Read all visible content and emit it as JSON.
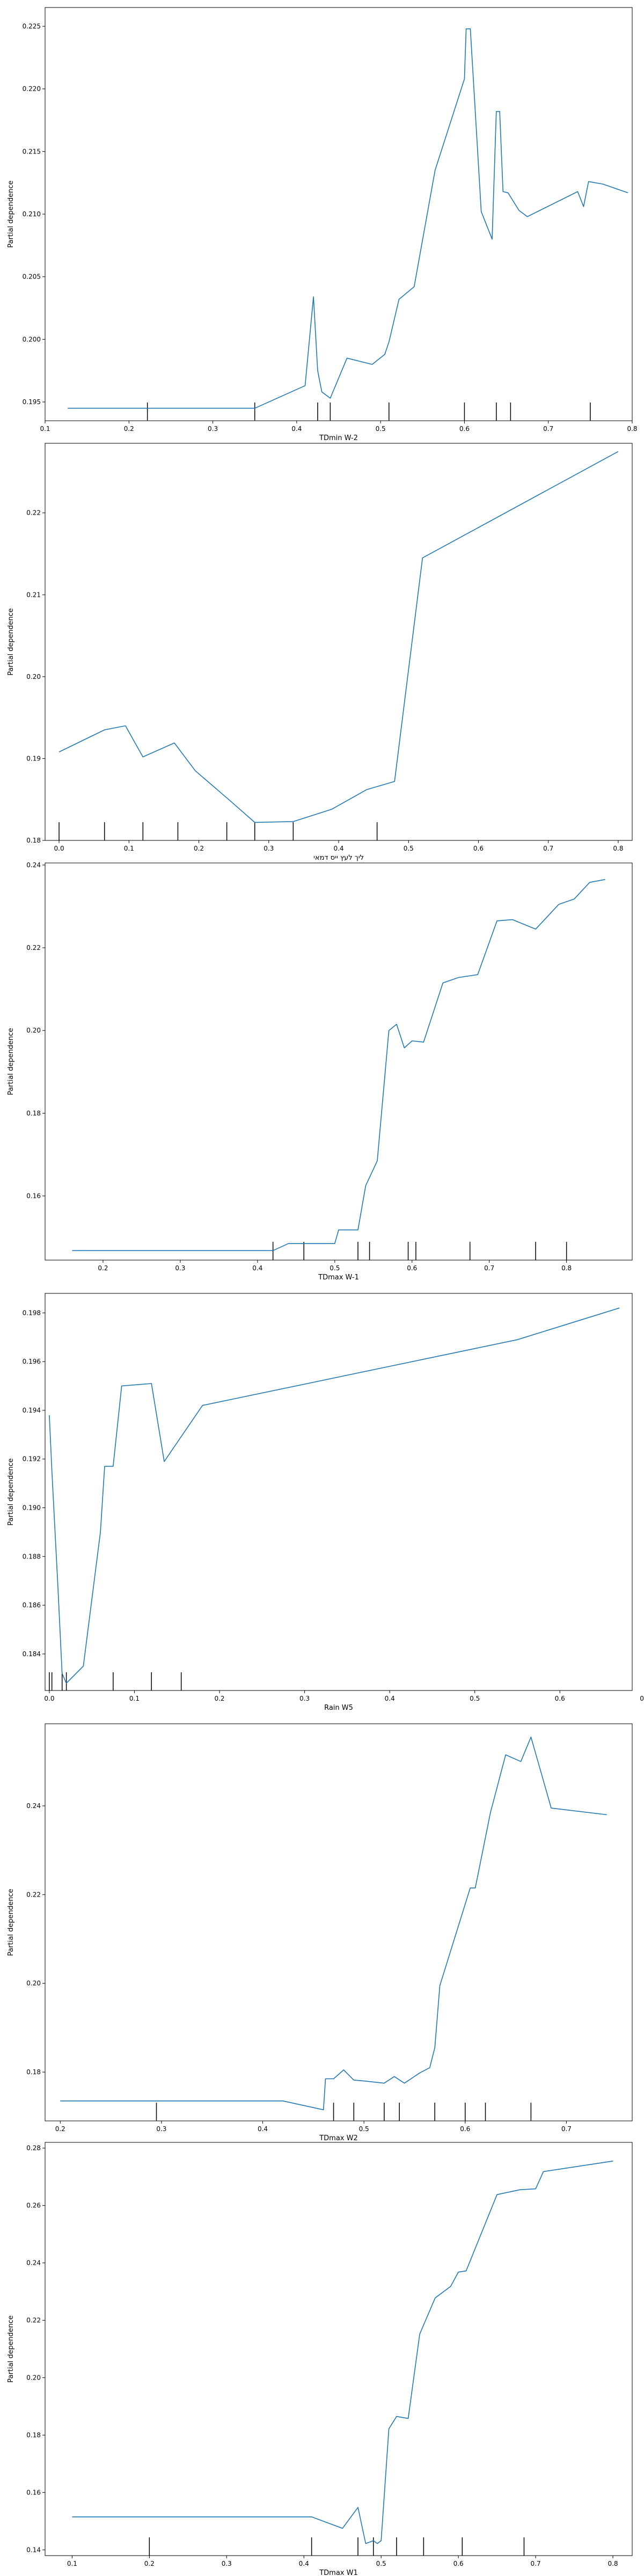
{
  "chart_data": [
    {
      "type": "line",
      "xlabel": "TDmin W-2",
      "ylabel": "Partial dependence",
      "xlim": [
        0.1,
        0.8
      ],
      "ylim": [
        0.1935,
        0.2265
      ],
      "x_ticks": [
        "0.1",
        "0.2",
        "0.3",
        "0.4",
        "0.5",
        "0.6",
        "0.7",
        "0.8"
      ],
      "x_tick_values": [
        0.1,
        0.2,
        0.3,
        0.4,
        0.5,
        0.6,
        0.7,
        0.8
      ],
      "y_ticks": [
        "0.195",
        "0.200",
        "0.205",
        "0.210",
        "0.215",
        "0.220",
        "0.225"
      ],
      "y_tick_values": [
        0.195,
        0.2,
        0.205,
        0.21,
        0.215,
        0.22,
        0.225
      ],
      "x": [
        0.127,
        0.222,
        0.35,
        0.41,
        0.42,
        0.425,
        0.43,
        0.44,
        0.46,
        0.49,
        0.505,
        0.51,
        0.522,
        0.54,
        0.565,
        0.6,
        0.602,
        0.607,
        0.62,
        0.633,
        0.638,
        0.642,
        0.646,
        0.652,
        0.665,
        0.675,
        0.735,
        0.742,
        0.748,
        0.765,
        0.795
      ],
      "values": [
        0.1945,
        0.1945,
        0.1945,
        0.1963,
        0.2034,
        0.1975,
        0.1958,
        0.1953,
        0.1985,
        0.198,
        0.1988,
        0.1998,
        0.2032,
        0.2042,
        0.2135,
        0.2208,
        0.2248,
        0.2248,
        0.2102,
        0.208,
        0.2182,
        0.2182,
        0.2118,
        0.2117,
        0.2103,
        0.2098,
        0.2118,
        0.2106,
        0.2126,
        0.2124,
        0.2117
      ],
      "rug": [
        0.222,
        0.35,
        0.425,
        0.44,
        0.51,
        0.6,
        0.638,
        0.655,
        0.75
      ]
    },
    {
      "type": "line",
      "xlabel": "ליך לעץ ייס דמאי",
      "ylabel": "Partial dependence",
      "xlim": [
        -0.02,
        0.82
      ],
      "ylim": [
        0.18,
        0.2285
      ],
      "x_ticks": [
        "0.0",
        "0.1",
        "0.2",
        "0.3",
        "0.4",
        "0.5",
        "0.6",
        "0.7",
        "0.8"
      ],
      "x_tick_values": [
        0.0,
        0.1,
        0.2,
        0.3,
        0.4,
        0.5,
        0.6,
        0.7,
        0.8
      ],
      "y_ticks": [
        "0.18",
        "0.19",
        "0.20",
        "0.21",
        "0.22"
      ],
      "y_tick_values": [
        0.18,
        0.19,
        0.2,
        0.21,
        0.22
      ],
      "x": [
        0.0,
        0.065,
        0.095,
        0.12,
        0.165,
        0.195,
        0.24,
        0.28,
        0.335,
        0.39,
        0.44,
        0.48,
        0.52,
        0.8
      ],
      "values": [
        0.1908,
        0.1935,
        0.194,
        0.1902,
        0.1919,
        0.1885,
        0.1852,
        0.1822,
        0.1823,
        0.1838,
        0.1862,
        0.1872,
        0.2145,
        0.2275
      ],
      "rug": [
        0.0,
        0.065,
        0.12,
        0.17,
        0.24,
        0.28,
        0.335,
        0.455
      ]
    },
    {
      "type": "line",
      "xlabel": "TDmax W-1",
      "ylabel": "Partial dependence",
      "xlim": [
        0.125,
        0.885
      ],
      "ylim": [
        0.1445,
        0.2405
      ],
      "x_ticks": [
        "0.2",
        "0.3",
        "0.4",
        "0.5",
        "0.6",
        "0.7",
        "0.8"
      ],
      "x_tick_values": [
        0.2,
        0.3,
        0.4,
        0.5,
        0.6,
        0.7,
        0.8
      ],
      "y_ticks": [
        "0.16",
        "0.18",
        "0.20",
        "0.22",
        "0.24"
      ],
      "y_tick_values": [
        0.16,
        0.18,
        0.2,
        0.22,
        0.24
      ],
      "x": [
        0.16,
        0.42,
        0.44,
        0.5,
        0.505,
        0.53,
        0.54,
        0.555,
        0.57,
        0.58,
        0.59,
        0.6,
        0.615,
        0.64,
        0.66,
        0.685,
        0.71,
        0.73,
        0.76,
        0.79,
        0.81,
        0.83,
        0.85
      ],
      "values": [
        0.1468,
        0.1468,
        0.1485,
        0.1485,
        0.1518,
        0.1518,
        0.1625,
        0.1685,
        0.2,
        0.2015,
        0.1958,
        0.1975,
        0.1972,
        0.2115,
        0.2128,
        0.2135,
        0.2265,
        0.2268,
        0.2245,
        0.2305,
        0.2318,
        0.2358,
        0.2365
      ],
      "rug": [
        0.42,
        0.46,
        0.53,
        0.545,
        0.595,
        0.605,
        0.675,
        0.76,
        0.8
      ]
    },
    {
      "type": "line",
      "xlabel": "Rain W5",
      "ylabel": "Partial dependence",
      "xlim": [
        -0.005,
        0.685
      ],
      "ylim": [
        0.1825,
        0.1988
      ],
      "x_ticks": [
        "0.0",
        "0.1",
        "0.2",
        "0.3",
        "0.4",
        "0.5",
        "0.6",
        "0.7"
      ],
      "x_tick_values": [
        0.0,
        0.1,
        0.2,
        0.3,
        0.4,
        0.5,
        0.6,
        0.7
      ],
      "y_ticks": [
        "0.184",
        "0.186",
        "0.188",
        "0.190",
        "0.192",
        "0.194",
        "0.196",
        "0.198"
      ],
      "y_tick_values": [
        0.184,
        0.186,
        0.188,
        0.19,
        0.192,
        0.194,
        0.196,
        0.198
      ],
      "x": [
        0.0,
        0.003,
        0.01,
        0.015,
        0.02,
        0.04,
        0.06,
        0.065,
        0.075,
        0.085,
        0.12,
        0.135,
        0.18,
        0.55,
        0.67
      ],
      "values": [
        0.1938,
        0.1915,
        0.1868,
        0.1832,
        0.1828,
        0.1835,
        0.189,
        0.1917,
        0.1917,
        0.195,
        0.1951,
        0.1919,
        0.1942,
        0.1969,
        0.1982
      ],
      "rug": [
        0.0,
        0.003,
        0.015,
        0.02,
        0.075,
        0.12,
        0.155
      ]
    },
    {
      "type": "line",
      "xlabel": "TDmax W2",
      "ylabel": "Partial dependence",
      "xlim": [
        0.185,
        0.765
      ],
      "ylim": [
        0.169,
        0.2585
      ],
      "x_ticks": [
        "0.2",
        "0.3",
        "0.4",
        "0.5",
        "0.6",
        "0.7"
      ],
      "x_tick_values": [
        0.2,
        0.3,
        0.4,
        0.5,
        0.6,
        0.7
      ],
      "y_ticks": [
        "0.18",
        "0.20",
        "0.22",
        "0.24"
      ],
      "y_tick_values": [
        0.18,
        0.2,
        0.22,
        0.24
      ],
      "x": [
        0.2,
        0.295,
        0.42,
        0.46,
        0.462,
        0.47,
        0.48,
        0.49,
        0.5,
        0.52,
        0.53,
        0.54,
        0.555,
        0.565,
        0.57,
        0.575,
        0.59,
        0.605,
        0.61,
        0.625,
        0.64,
        0.655,
        0.665,
        0.685,
        0.74
      ],
      "values": [
        0.1735,
        0.1735,
        0.1735,
        0.1715,
        0.1785,
        0.1785,
        0.1805,
        0.1782,
        0.178,
        0.1775,
        0.179,
        0.1775,
        0.1798,
        0.181,
        0.1855,
        0.1995,
        0.2105,
        0.2215,
        0.2215,
        0.2385,
        0.2515,
        0.25,
        0.2555,
        0.2395,
        0.238
      ],
      "rug": [
        0.295,
        0.47,
        0.49,
        0.52,
        0.535,
        0.57,
        0.6,
        0.62,
        0.665
      ]
    },
    {
      "type": "line",
      "xlabel": "TDmax W1",
      "ylabel": "Partial dependence",
      "xlim": [
        0.065,
        0.825
      ],
      "ylim": [
        0.138,
        0.282
      ],
      "x_ticks": [
        "0.1",
        "0.2",
        "0.3",
        "0.4",
        "0.5",
        "0.6",
        "0.7",
        "0.8"
      ],
      "x_tick_values": [
        0.1,
        0.2,
        0.3,
        0.4,
        0.5,
        0.6,
        0.7,
        0.8
      ],
      "y_ticks": [
        "0.14",
        "0.16",
        "0.18",
        "0.20",
        "0.22",
        "0.24",
        "0.26",
        "0.28"
      ],
      "y_tick_values": [
        0.14,
        0.16,
        0.18,
        0.2,
        0.22,
        0.24,
        0.26,
        0.28
      ],
      "x": [
        0.1,
        0.41,
        0.45,
        0.47,
        0.48,
        0.49,
        0.495,
        0.5,
        0.51,
        0.52,
        0.535,
        0.55,
        0.57,
        0.59,
        0.6,
        0.61,
        0.65,
        0.68,
        0.7,
        0.71,
        0.8
      ],
      "values": [
        0.1515,
        0.1515,
        0.1475,
        0.1548,
        0.1422,
        0.1432,
        0.1422,
        0.1432,
        0.1822,
        0.1865,
        0.1858,
        0.2152,
        0.2278,
        0.2318,
        0.2368,
        0.2372,
        0.2638,
        0.2655,
        0.2658,
        0.2718,
        0.2755
      ],
      "rug": [
        0.2,
        0.41,
        0.47,
        0.49,
        0.52,
        0.555,
        0.605,
        0.685
      ]
    }
  ]
}
